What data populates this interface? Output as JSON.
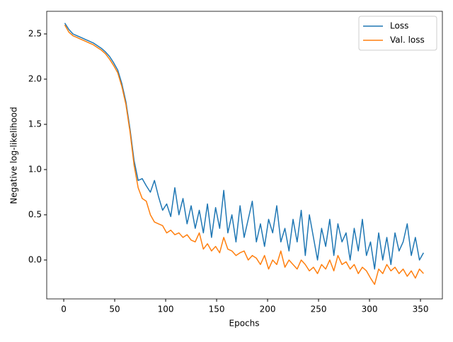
{
  "chart_data": {
    "type": "line",
    "xlabel": "Epochs",
    "ylabel": "Negative log-likelihood",
    "x": [
      1,
      5,
      9,
      13,
      17,
      21,
      25,
      29,
      33,
      37,
      41,
      45,
      49,
      53,
      57,
      61,
      65,
      69,
      73,
      77,
      81,
      85,
      89,
      93,
      97,
      101,
      105,
      109,
      113,
      117,
      121,
      125,
      129,
      133,
      137,
      141,
      145,
      149,
      153,
      157,
      161,
      165,
      169,
      173,
      177,
      181,
      185,
      189,
      193,
      197,
      201,
      205,
      209,
      213,
      217,
      221,
      225,
      229,
      233,
      237,
      241,
      245,
      249,
      253,
      257,
      261,
      265,
      269,
      273,
      277,
      281,
      285,
      289,
      293,
      297,
      301,
      305,
      309,
      313,
      317,
      321,
      325,
      329,
      333,
      337,
      341,
      345,
      349,
      353
    ],
    "series": [
      {
        "name": "Loss",
        "color": "#1f77b4",
        "values": [
          2.62,
          2.55,
          2.5,
          2.48,
          2.46,
          2.44,
          2.42,
          2.4,
          2.37,
          2.34,
          2.3,
          2.25,
          2.18,
          2.1,
          1.95,
          1.75,
          1.45,
          1.1,
          0.88,
          0.9,
          0.82,
          0.75,
          0.88,
          0.7,
          0.55,
          0.62,
          0.48,
          0.8,
          0.5,
          0.68,
          0.4,
          0.6,
          0.35,
          0.55,
          0.3,
          0.62,
          0.25,
          0.58,
          0.35,
          0.77,
          0.3,
          0.5,
          0.2,
          0.6,
          0.25,
          0.45,
          0.65,
          0.2,
          0.4,
          0.15,
          0.45,
          0.3,
          0.6,
          0.2,
          0.35,
          0.1,
          0.45,
          0.2,
          0.55,
          0.05,
          0.5,
          0.25,
          0.0,
          0.35,
          0.15,
          0.45,
          0.05,
          0.4,
          0.2,
          0.3,
          0.0,
          0.35,
          0.1,
          0.45,
          0.05,
          0.2,
          -0.1,
          0.3,
          0.0,
          0.25,
          -0.05,
          0.3,
          0.1,
          0.2,
          0.4,
          0.05,
          0.25,
          0.0,
          0.08
        ]
      },
      {
        "name": "Val. loss",
        "color": "#ff7f0e",
        "values": [
          2.6,
          2.52,
          2.48,
          2.46,
          2.44,
          2.42,
          2.4,
          2.38,
          2.35,
          2.32,
          2.28,
          2.22,
          2.15,
          2.07,
          1.92,
          1.72,
          1.42,
          1.05,
          0.8,
          0.68,
          0.65,
          0.5,
          0.42,
          0.4,
          0.38,
          0.3,
          0.33,
          0.28,
          0.3,
          0.25,
          0.28,
          0.22,
          0.2,
          0.3,
          0.12,
          0.18,
          0.1,
          0.15,
          0.08,
          0.25,
          0.12,
          0.1,
          0.05,
          0.08,
          0.1,
          0.0,
          0.05,
          0.02,
          -0.05,
          0.05,
          -0.1,
          0.0,
          -0.05,
          0.1,
          -0.08,
          0.0,
          -0.05,
          -0.1,
          0.0,
          -0.05,
          -0.12,
          -0.08,
          -0.15,
          -0.05,
          -0.1,
          0.0,
          -0.12,
          0.05,
          -0.05,
          -0.02,
          -0.1,
          -0.05,
          -0.15,
          -0.08,
          -0.12,
          -0.2,
          -0.27,
          -0.1,
          -0.15,
          -0.05,
          -0.12,
          -0.08,
          -0.15,
          -0.1,
          -0.18,
          -0.12,
          -0.2,
          -0.1,
          -0.15
        ]
      }
    ],
    "xlim": [
      -16.7,
      371.5
    ],
    "ylim": [
      -0.43,
      2.75
    ],
    "xticks": [
      0,
      50,
      100,
      150,
      200,
      250,
      300,
      350
    ],
    "yticks": [
      {
        "value": 0,
        "label": "0.0"
      },
      0.5,
      {
        "value": 1,
        "label": "1.0"
      },
      1.5,
      {
        "value": 2,
        "label": "2.0"
      },
      2.5
    ],
    "legend": "upper right"
  }
}
